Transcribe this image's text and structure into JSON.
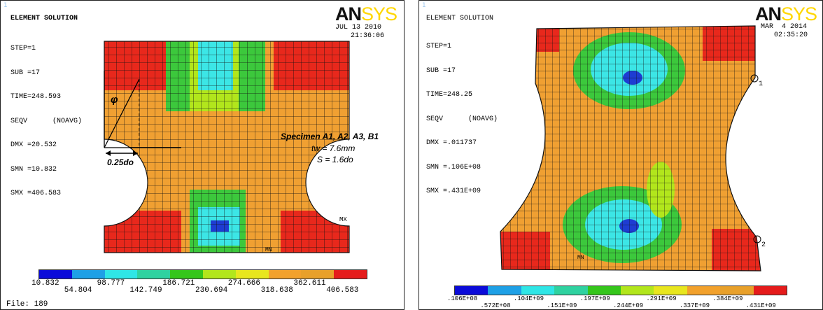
{
  "panels": [
    {
      "corner_num": "1",
      "logo_bold": "AN",
      "logo_light": "SYS",
      "title": "ELEMENT SOLUTION",
      "info_lines": [
        "STEP=1",
        "SUB =17",
        "TIME=248.593",
        "SEQV      (NOAVG)",
        "DMX =20.532",
        "SMN =10.832",
        "SMX =406.583"
      ],
      "date": "JUL 13 2010",
      "time": "21:36:06",
      "legend_top": [
        "10.832",
        "98.777",
        "186.721",
        "274.666",
        "362.611"
      ],
      "legend_bottom": [
        "54.804",
        "142.749",
        "230.694",
        "318.638",
        "406.583"
      ],
      "file_label": "File: 189",
      "mx_label": "MX",
      "mn_label": "MN",
      "specimen_title": "Specimen A1, A2, A3, B1",
      "tw_label": "tw = 7.6mm",
      "s_label": "S = 1.6do",
      "phi_label": "φ",
      "dist_label": "0.25do"
    },
    {
      "corner_num": "1",
      "logo_bold": "AN",
      "logo_light": "SYS",
      "title": "ELEMENT SOLUTION",
      "info_lines": [
        "STEP=1",
        "SUB =17",
        "TIME=248.25",
        "SEQV      (NOAVG)",
        "DMX =.011737",
        "SMN =.106E+08",
        "SMX =.431E+09"
      ],
      "date": "MAR  4 2014",
      "time": "02:35:20",
      "legend_top": [
        ".106E+08",
        ".104E+09",
        ".197E+09",
        ".291E+09",
        ".384E+09"
      ],
      "legend_bottom": [
        ".572E+08",
        ".151E+09",
        ".244E+09",
        ".337E+09",
        ".431E+09"
      ],
      "mn_label": "MN",
      "node_1": "1",
      "node_2": "2"
    }
  ],
  "colors": {
    "legend": [
      "#0b0bd9",
      "#1ea0e6",
      "#2fe6e6",
      "#2fd2a0",
      "#35c61b",
      "#b2e61c",
      "#e8e61e",
      "#f2a12c",
      "#e8a02a",
      "#e51b1b"
    ],
    "orange": "#f0a032",
    "red": "#e8281c",
    "green": "#3cc83c",
    "cyan": "#3ce6e6",
    "blue": "#1e3cd2",
    "teal": "#36c8a0"
  }
}
